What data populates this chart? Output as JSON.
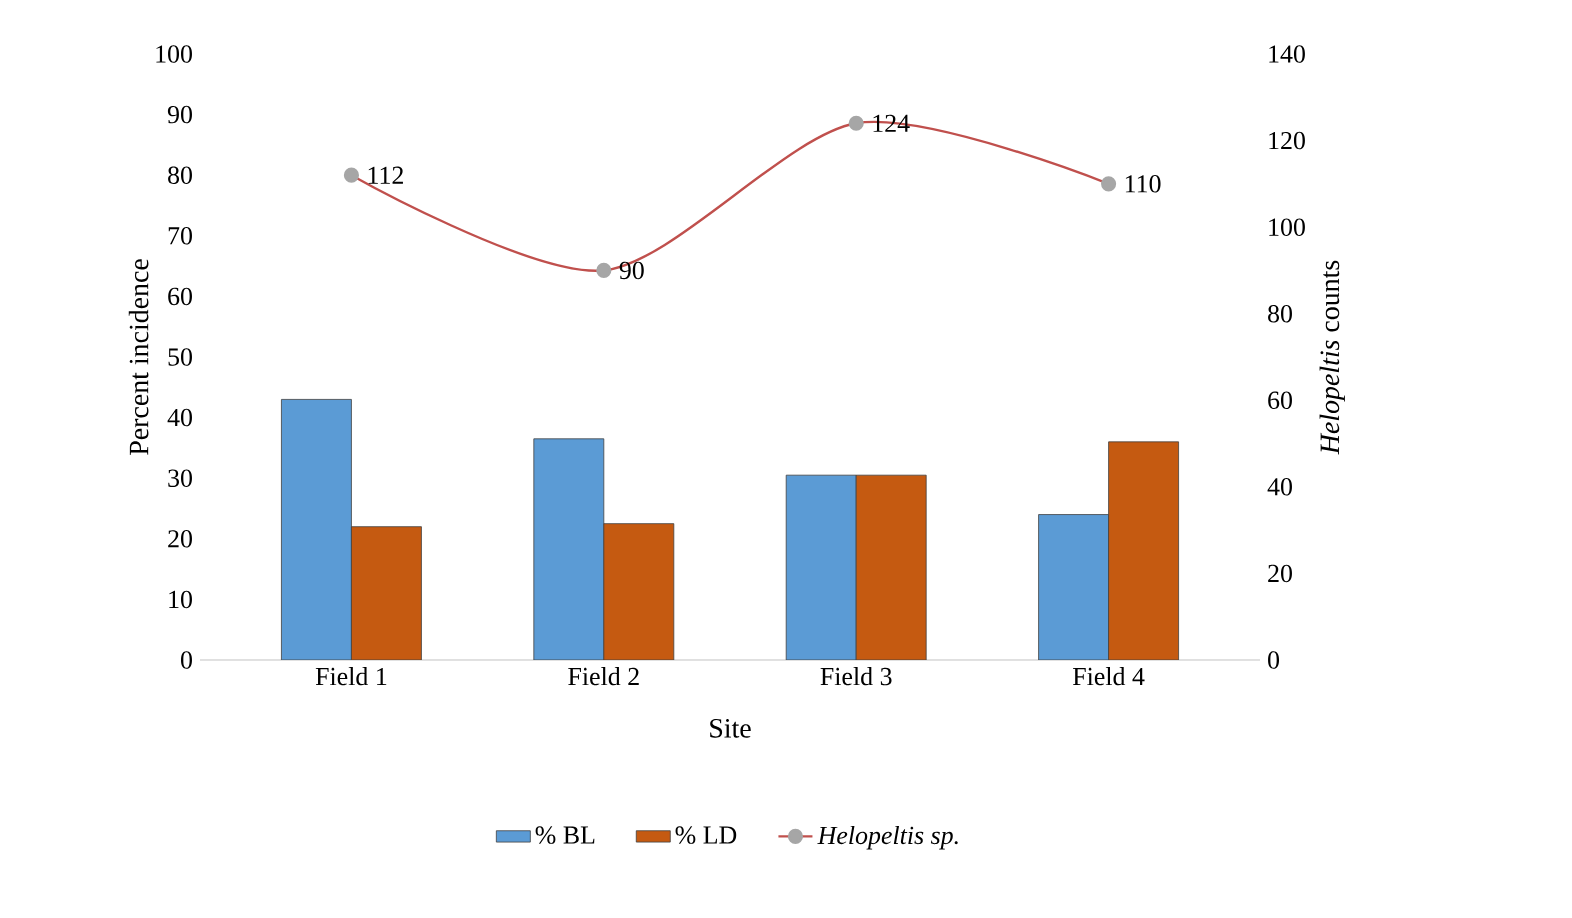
{
  "chart_data": {
    "type": "bar",
    "xlabel": "Site",
    "ylabel": "Percent incidence",
    "y2label": "*Helopeltis* counts",
    "categories": [
      "Field 1",
      "Field 2",
      "Field 3",
      "Field 4"
    ],
    "series": [
      {
        "name": "% BL",
        "color": "#5b9bd5",
        "values": [
          43,
          36.5,
          30.5,
          24
        ]
      },
      {
        "name": "% LD",
        "color": "#c55a11",
        "values": [
          22,
          22.5,
          30.5,
          36
        ]
      },
      {
        "name": "Helopeltis sp.",
        "type": "line",
        "axis": "y2",
        "color": "#c0504d",
        "marker": "circle",
        "values": [
          112,
          90,
          124,
          110
        ],
        "value_labels": [
          "112",
          "90",
          "124",
          "110"
        ]
      }
    ],
    "ylim": [
      0,
      100
    ],
    "yticks": [
      0,
      10,
      20,
      30,
      40,
      50,
      60,
      70,
      80,
      90,
      100
    ],
    "y2lim": [
      0,
      140
    ],
    "y2ticks": [
      0,
      20,
      40,
      60,
      80,
      100,
      120,
      140
    ],
    "grid": false,
    "legend": "bottom"
  }
}
